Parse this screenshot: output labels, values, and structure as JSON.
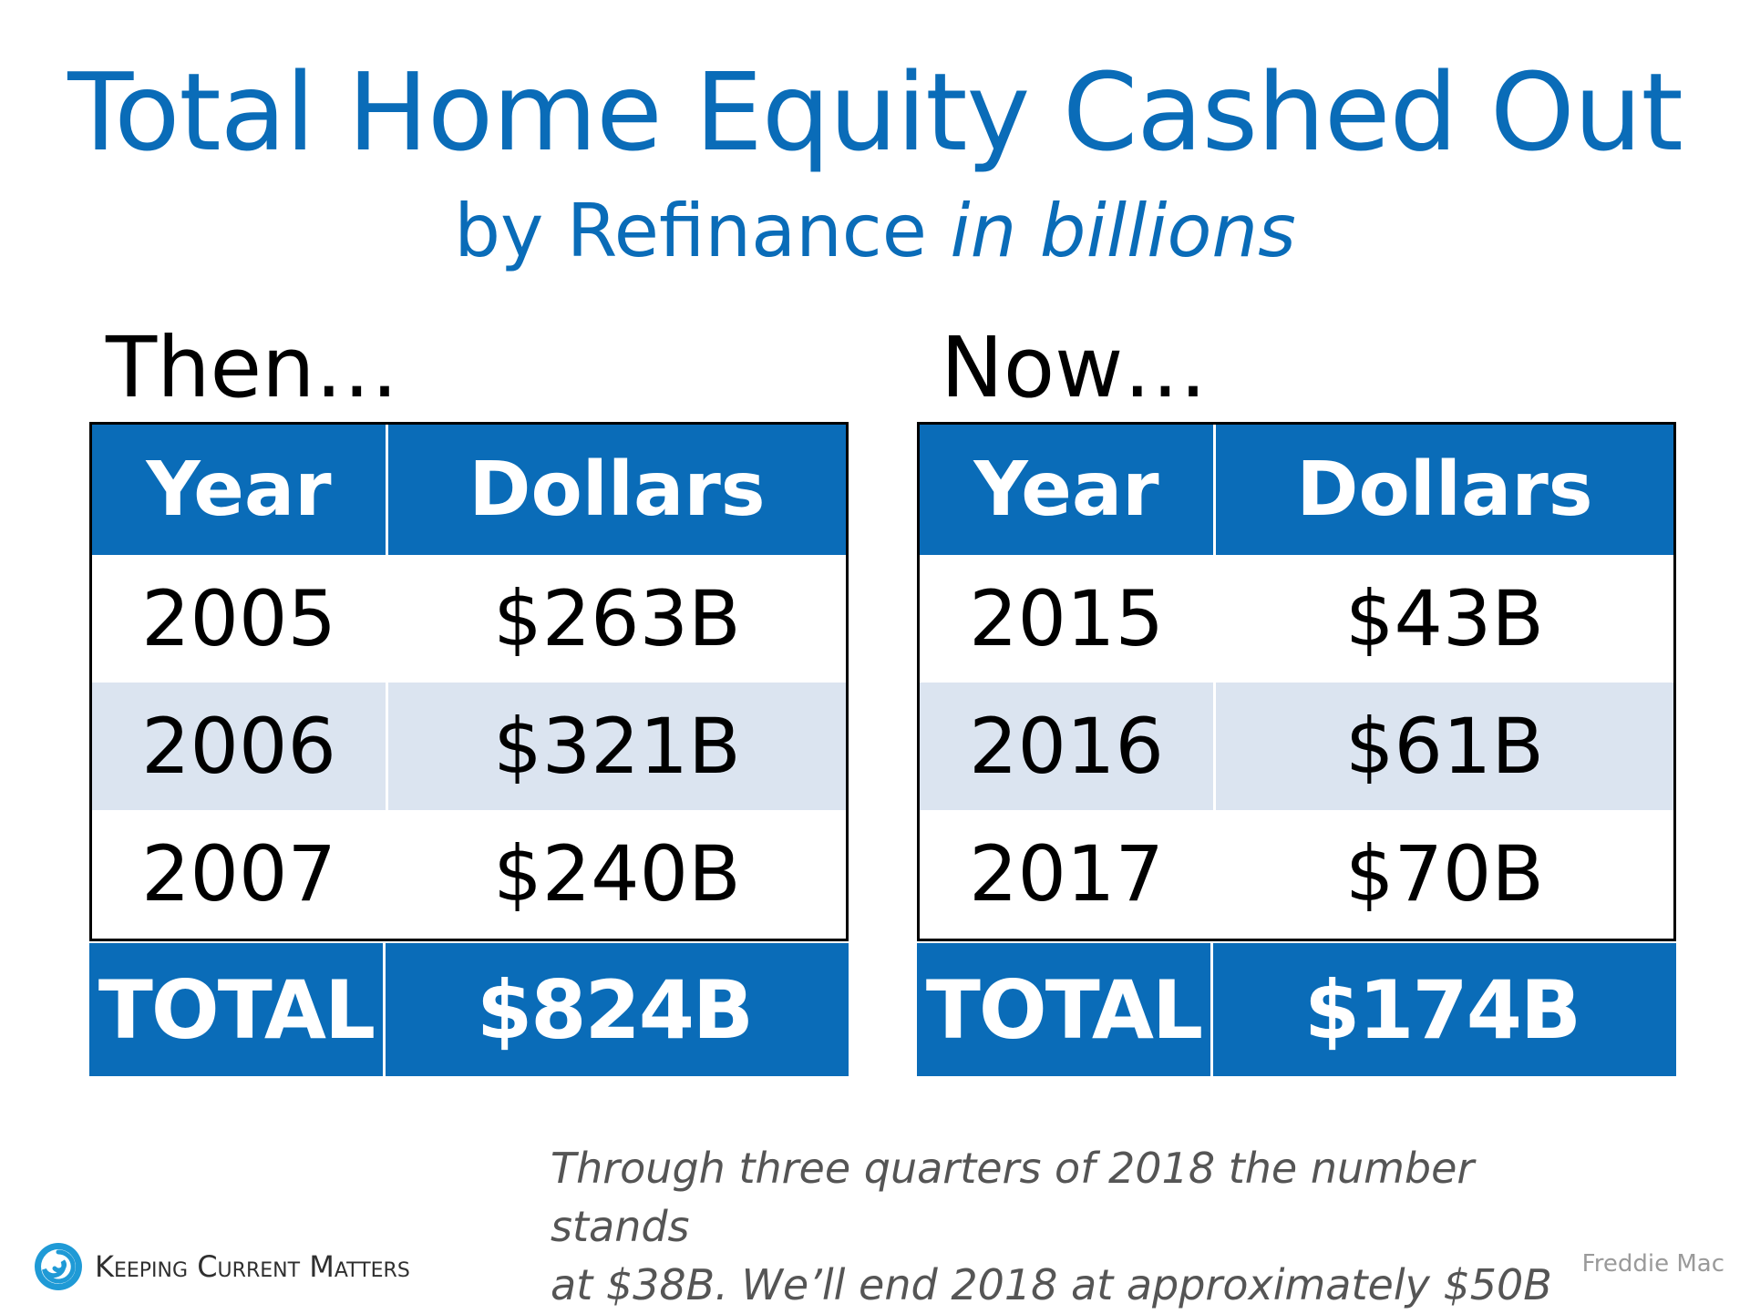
{
  "title": "Total Home Equity Cashed Out",
  "subtitle": {
    "main": "by Refinance ",
    "italic": "in billions"
  },
  "colors": {
    "accent": "#0a6cb8",
    "alt_row": "#dbe4f0",
    "note": "#555555",
    "source": "#9a9a9a"
  },
  "then": {
    "label": "Then…",
    "header": {
      "year": "Year",
      "dollars": "Dollars"
    },
    "rows": [
      {
        "year": "2005",
        "dollars": "$263B"
      },
      {
        "year": "2006",
        "dollars": "$321B"
      },
      {
        "year": "2007",
        "dollars": "$240B"
      }
    ],
    "total": {
      "label": "TOTAL",
      "value": "$824B"
    }
  },
  "now": {
    "label": "Now…",
    "header": {
      "year": "Year",
      "dollars": "Dollars"
    },
    "rows": [
      {
        "year": "2015",
        "dollars": "$43B"
      },
      {
        "year": "2016",
        "dollars": "$61B"
      },
      {
        "year": "2017",
        "dollars": "$70B"
      }
    ],
    "total": {
      "label": "TOTAL",
      "value": "$174B"
    }
  },
  "note": {
    "line1": "Through three quarters of 2018 the number stands",
    "line2": "at $38B. We’ll end 2018 at approximately $50B"
  },
  "logo": {
    "text": "Keeping Current Matters",
    "icon": "swirl-logo-icon"
  },
  "source": "Freddie Mac"
}
